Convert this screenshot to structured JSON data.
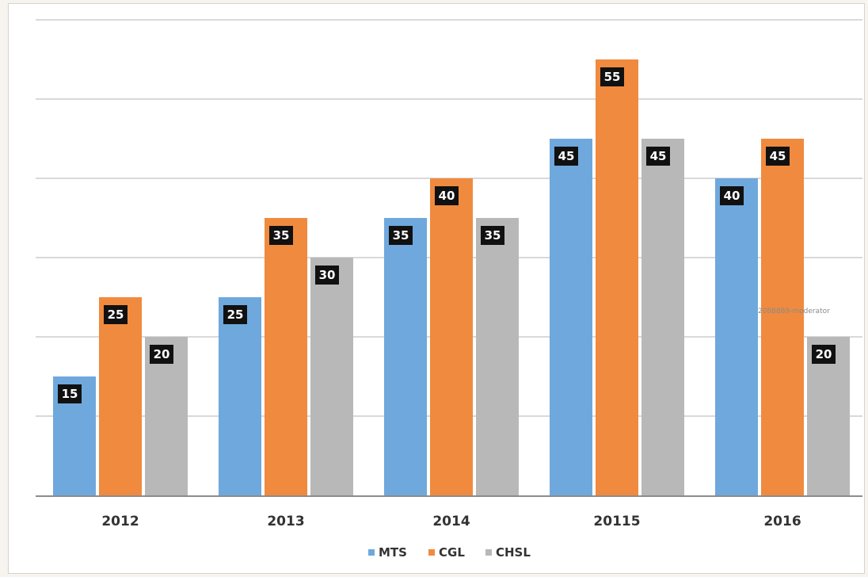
{
  "chart_data": {
    "type": "bar",
    "categories": [
      "2012",
      "2013",
      "2014",
      "20115",
      "2016"
    ],
    "series": [
      {
        "name": "MTS",
        "values": [
          15,
          25,
          35,
          45,
          40
        ],
        "color": "#6fa8dc"
      },
      {
        "name": "CGL",
        "values": [
          25,
          35,
          40,
          55,
          45
        ],
        "color": "#f08a3e"
      },
      {
        "name": "CHSL",
        "values": [
          20,
          30,
          35,
          45,
          20
        ],
        "color": "#b8b8b8"
      }
    ],
    "data_labels": [
      [
        "15",
        "25",
        "35",
        "45",
        "40"
      ],
      [
        "25",
        "35",
        "40",
        "55",
        "45"
      ],
      [
        "20",
        "30",
        "35",
        "45",
        "20"
      ]
    ],
    "ylim": [
      0,
      60
    ],
    "grid": true,
    "legend": "bottom",
    "title": "",
    "xlabel": "",
    "ylabel": ""
  },
  "watermark": "2088889-moderator",
  "colors": {
    "label_box": "#111111",
    "grid": "#d9d9d9",
    "axis": "#8c8c8c"
  }
}
